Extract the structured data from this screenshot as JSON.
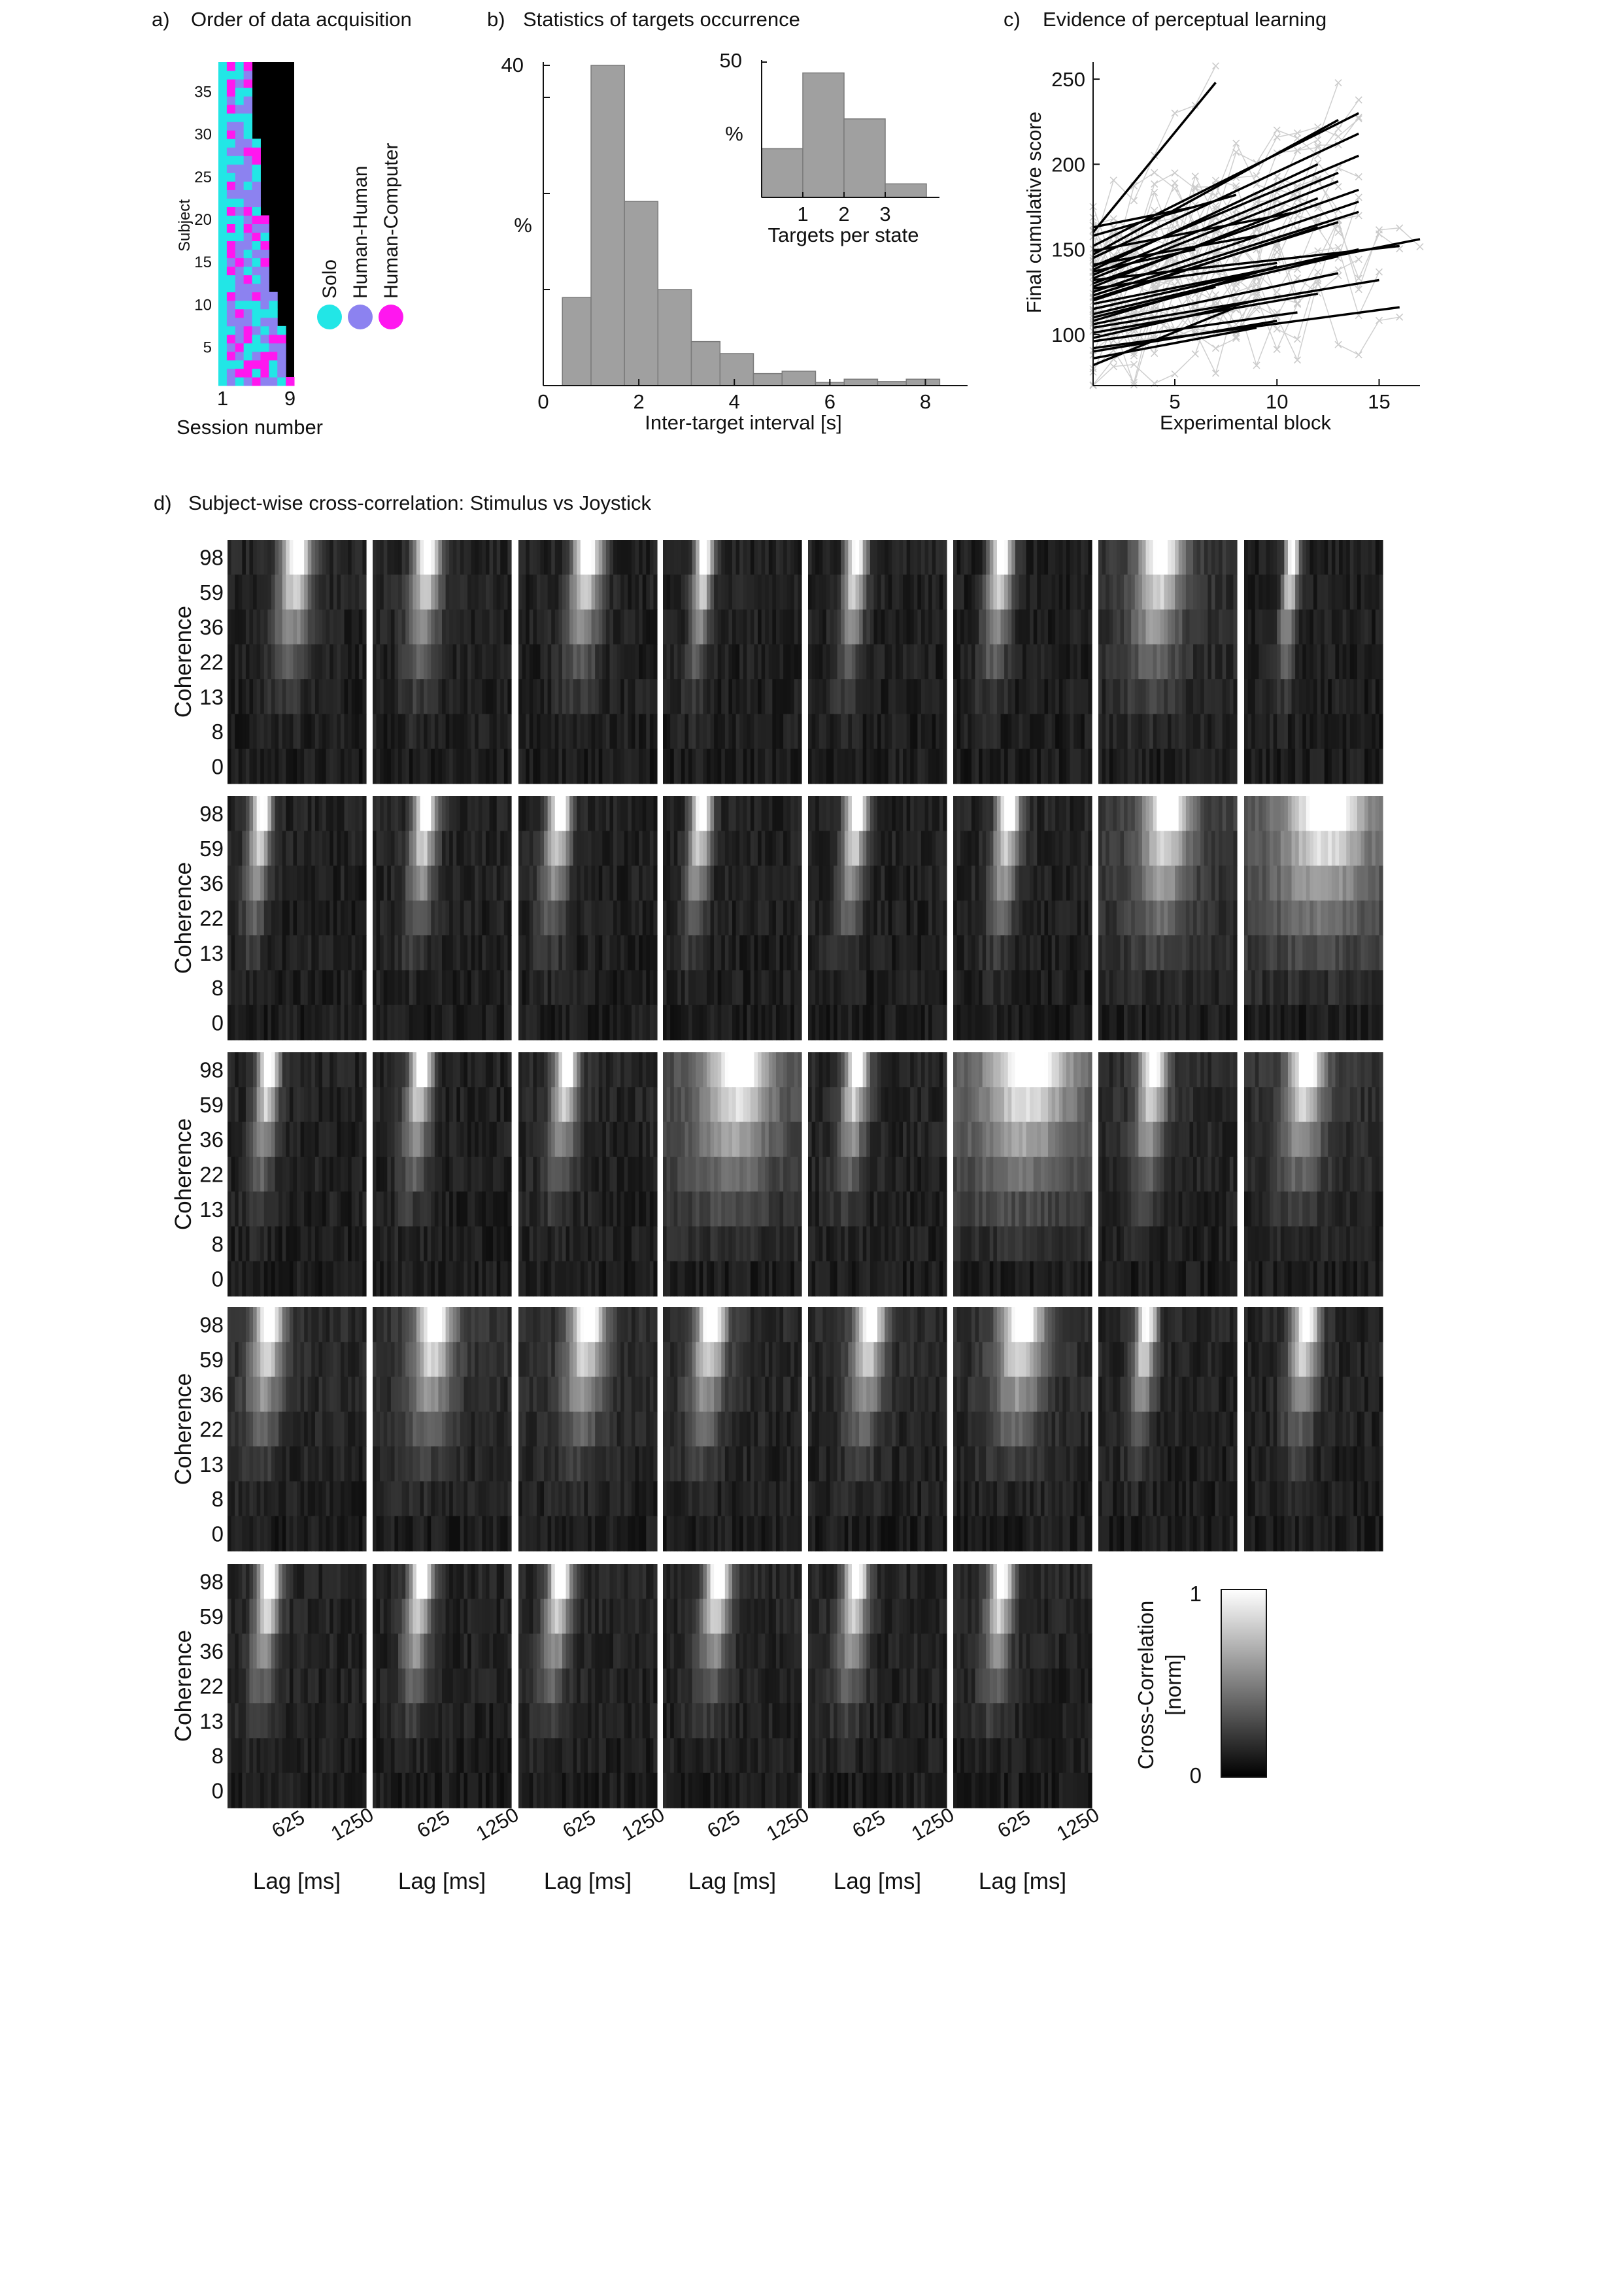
{
  "panel_a": {
    "letter": "a)",
    "title": "Order of data acquisition",
    "ylabel": "Subject",
    "xlabel": "Session number",
    "colors": {
      "solo": "#22e6e6",
      "human_human": "#8c82f0",
      "human_computer": "#ff17ef"
    },
    "chart_data": {
      "type": "heatmap",
      "subjects": 38,
      "sessions": 9,
      "y_ticks": [
        "5",
        "10",
        "15",
        "20",
        "25",
        "30",
        "35"
      ],
      "x_ticks": [
        "1",
        "9"
      ],
      "legend": [
        "Solo",
        "Human-Human",
        "Human-Computer"
      ],
      "sessions_per_subject": [
        9,
        8,
        8,
        8,
        8,
        8,
        8,
        7,
        7,
        7,
        7,
        6,
        6,
        6,
        6,
        6,
        6,
        6,
        6,
        6,
        5,
        5,
        5,
        5,
        5,
        5,
        5,
        5,
        5,
        4,
        4,
        4,
        4,
        4,
        4,
        4,
        4,
        4
      ],
      "conditions": "session 1 Solo for all subjects; remaining sessions mixed Solo / Human-Human / Human-Computer; black = no session"
    }
  },
  "panel_b": {
    "letter": "b)",
    "title": "Statistics of targets occurrence",
    "chart_data": {
      "type": "bar",
      "xlabel": "Inter-target interval [s]",
      "ylabel": "%",
      "x_ticks": [
        "0",
        "2",
        "4",
        "6",
        "8"
      ],
      "y_ticks": [
        "40"
      ],
      "ylim": [
        0,
        40
      ],
      "bin_edges": [
        0.4,
        1.0,
        1.7,
        2.4,
        3.1,
        3.7,
        4.4,
        5.0,
        5.7,
        6.3,
        7.0,
        7.6,
        8.3
      ],
      "values": [
        11,
        40,
        23,
        12,
        5.5,
        4,
        1.5,
        1.8,
        0.4,
        0.8,
        0.5,
        0.8
      ],
      "inset": {
        "type": "bar",
        "xlabel": "Targets per state",
        "ylabel": "%",
        "x_ticks": [
          "1",
          "2",
          "3"
        ],
        "y_ticks": [
          "50"
        ],
        "ylim": [
          0,
          50
        ],
        "categories": [
          "0.5",
          "1.5",
          "2.5",
          "3.5"
        ],
        "values": [
          18,
          46,
          29,
          5
        ]
      }
    }
  },
  "panel_c": {
    "letter": "c)",
    "title": "Evidence of perceptual learning",
    "chart_data": {
      "type": "scatter",
      "xlabel": "Experimental block",
      "ylabel": "Final cumulative score",
      "x_ticks": [
        "5",
        "10",
        "15"
      ],
      "y_ticks": [
        "100",
        "150",
        "200",
        "250"
      ],
      "xlim": [
        1,
        17
      ],
      "ylim": [
        70,
        260
      ],
      "fit_lines": [
        [
          1,
          160,
          7,
          248
        ],
        [
          1,
          152,
          14,
          230
        ],
        [
          1,
          147,
          13,
          226
        ],
        [
          1,
          145,
          14,
          218
        ],
        [
          1,
          140,
          14,
          205
        ],
        [
          1,
          138,
          12,
          200
        ],
        [
          1,
          135,
          13,
          195
        ],
        [
          1,
          133,
          13,
          190
        ],
        [
          1,
          130,
          14,
          185
        ],
        [
          1,
          128,
          12,
          180
        ],
        [
          1,
          125,
          14,
          178
        ],
        [
          1,
          123,
          14,
          172
        ],
        [
          1,
          121,
          13,
          166
        ],
        [
          1,
          120,
          12,
          163
        ],
        [
          1,
          118,
          17,
          156
        ],
        [
          1,
          115,
          14,
          150
        ],
        [
          1,
          112,
          13,
          146
        ],
        [
          1,
          108,
          10,
          140
        ],
        [
          1,
          106,
          13,
          136
        ],
        [
          1,
          104,
          15,
          132
        ],
        [
          1,
          101,
          12,
          124
        ],
        [
          1,
          98,
          9,
          120
        ],
        [
          1,
          96,
          11,
          113
        ],
        [
          1,
          92,
          16,
          116
        ],
        [
          1,
          90,
          10,
          108
        ],
        [
          1,
          86,
          9,
          104
        ],
        [
          1,
          82,
          8,
          116
        ],
        [
          1,
          137,
          6,
          150
        ],
        [
          1,
          158,
          8,
          182
        ],
        [
          1,
          149,
          11,
          172
        ],
        [
          1,
          141,
          9,
          158
        ],
        [
          1,
          163,
          6,
          175
        ],
        [
          1,
          127,
          10,
          142
        ],
        [
          1,
          110,
          7,
          128
        ],
        [
          1,
          132,
          16,
          152
        ]
      ]
    }
  },
  "panel_d": {
    "letter": "d)",
    "title": "Subject-wise cross-correlation: Stimulus vs Joystick",
    "ylabel": "Coherence",
    "xlabel": "Lag [ms]",
    "coherence_levels": [
      "98",
      "59",
      "36",
      "22",
      "13",
      "8",
      "0"
    ],
    "lag_ticks": [
      "625",
      "1250"
    ],
    "colorbar": {
      "label_line1": "Cross-Correlation",
      "label_line2": "[norm]",
      "max_label": "1",
      "min_label": "0"
    },
    "chart_data": {
      "type": "heatmap",
      "rows": [
        8,
        8,
        8,
        8,
        6
      ],
      "y": "coherence",
      "x": "lag [ms]",
      "value_range": [
        0,
        1
      ],
      "subjects": [
        {
          "peak_lag": 0.5,
          "width": 0.1,
          "diffuse": 0.15
        },
        {
          "peak_lag": 0.4,
          "width": 0.09,
          "diffuse": 0.15
        },
        {
          "peak_lag": 0.5,
          "width": 0.1,
          "diffuse": 0.1
        },
        {
          "peak_lag": 0.3,
          "width": 0.06,
          "diffuse": 0.1
        },
        {
          "peak_lag": 0.35,
          "width": 0.07,
          "diffuse": 0.1
        },
        {
          "peak_lag": 0.35,
          "width": 0.08,
          "diffuse": 0.05
        },
        {
          "peak_lag": 0.45,
          "width": 0.14,
          "diffuse": 0.4
        },
        {
          "peak_lag": 0.35,
          "width": 0.05,
          "diffuse": 0.05
        },
        {
          "peak_lag": 0.25,
          "width": 0.07,
          "diffuse": 0.1
        },
        {
          "peak_lag": 0.38,
          "width": 0.08,
          "diffuse": 0.15
        },
        {
          "peak_lag": 0.3,
          "width": 0.08,
          "diffuse": 0.1
        },
        {
          "peak_lag": 0.28,
          "width": 0.07,
          "diffuse": 0.1
        },
        {
          "peak_lag": 0.35,
          "width": 0.08,
          "diffuse": 0.1
        },
        {
          "peak_lag": 0.4,
          "width": 0.08,
          "diffuse": 0.15
        },
        {
          "peak_lag": 0.5,
          "width": 0.14,
          "diffuse": 0.6
        },
        {
          "peak_lag": 0.6,
          "width": 0.25,
          "diffuse": 0.9
        },
        {
          "peak_lag": 0.3,
          "width": 0.07,
          "diffuse": 0.15
        },
        {
          "peak_lag": 0.35,
          "width": 0.08,
          "diffuse": 0.1
        },
        {
          "peak_lag": 0.35,
          "width": 0.08,
          "diffuse": 0.2
        },
        {
          "peak_lag": 0.55,
          "width": 0.2,
          "diffuse": 0.8
        },
        {
          "peak_lag": 0.35,
          "width": 0.08,
          "diffuse": 0.2
        },
        {
          "peak_lag": 0.55,
          "width": 0.25,
          "diffuse": 0.9
        },
        {
          "peak_lag": 0.4,
          "width": 0.09,
          "diffuse": 0.3
        },
        {
          "peak_lag": 0.45,
          "width": 0.12,
          "diffuse": 0.4
        },
        {
          "peak_lag": 0.3,
          "width": 0.1,
          "diffuse": 0.3
        },
        {
          "peak_lag": 0.45,
          "width": 0.12,
          "diffuse": 0.4
        },
        {
          "peak_lag": 0.5,
          "width": 0.12,
          "diffuse": 0.3
        },
        {
          "peak_lag": 0.35,
          "width": 0.1,
          "diffuse": 0.3
        },
        {
          "peak_lag": 0.45,
          "width": 0.1,
          "diffuse": 0.25
        },
        {
          "peak_lag": 0.5,
          "width": 0.15,
          "diffuse": 0.3
        },
        {
          "peak_lag": 0.35,
          "width": 0.07,
          "diffuse": 0.15
        },
        {
          "peak_lag": 0.45,
          "width": 0.09,
          "diffuse": 0.15
        },
        {
          "peak_lag": 0.3,
          "width": 0.08,
          "diffuse": 0.2
        },
        {
          "peak_lag": 0.35,
          "width": 0.08,
          "diffuse": 0.15
        },
        {
          "peak_lag": 0.3,
          "width": 0.08,
          "diffuse": 0.2
        },
        {
          "peak_lag": 0.4,
          "width": 0.09,
          "diffuse": 0.2
        },
        {
          "peak_lag": 0.35,
          "width": 0.08,
          "diffuse": 0.2
        },
        {
          "peak_lag": 0.35,
          "width": 0.08,
          "diffuse": 0.2
        }
      ]
    }
  }
}
